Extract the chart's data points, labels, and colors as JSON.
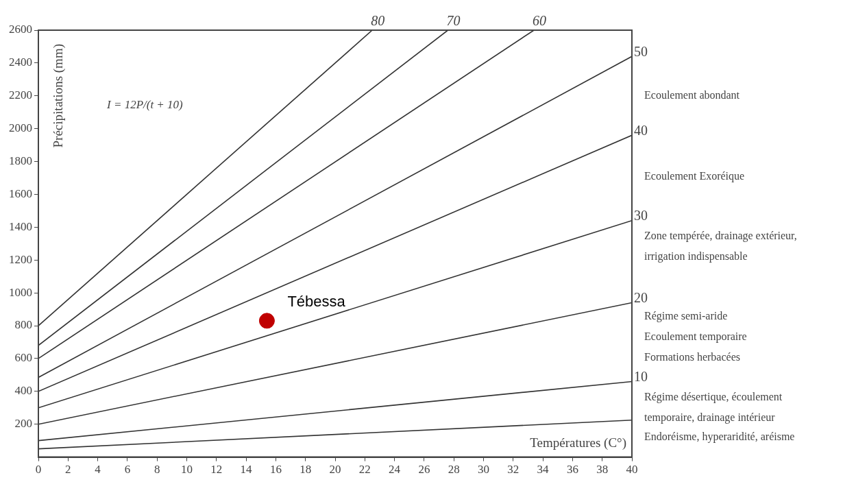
{
  "chart_data": {
    "type": "line",
    "xlabel": "Températures (C°)",
    "ylabel": "Précipitations (mm)",
    "xlim": [
      0,
      40
    ],
    "xticks": [
      0,
      2,
      4,
      6,
      8,
      10,
      12,
      14,
      16,
      18,
      20,
      22,
      24,
      26,
      28,
      30,
      32,
      34,
      36,
      38,
      40
    ],
    "ylim": [
      0,
      2600
    ],
    "yticks": [
      200,
      400,
      600,
      800,
      1000,
      1200,
      1400,
      1600,
      1800,
      2000,
      2200,
      2400,
      2600
    ],
    "grid": false,
    "legend": false,
    "marker": "none",
    "line_style": "solid",
    "series": [
      {
        "name": "80",
        "color": "#333333",
        "x": [
          0,
          22.5
        ],
        "values": [
          800,
          2600
        ]
      },
      {
        "name": "70",
        "color": "#333333",
        "x": [
          0,
          27.6
        ],
        "values": [
          680,
          2600
        ]
      },
      {
        "name": "60",
        "color": "#333333",
        "x": [
          0,
          33.4
        ],
        "values": [
          600,
          2600
        ]
      },
      {
        "name": "50",
        "color": "#333333",
        "x": [
          0,
          40
        ],
        "values": [
          485,
          2440
        ]
      },
      {
        "name": "40",
        "color": "#333333",
        "x": [
          0,
          40
        ],
        "values": [
          400,
          1960
        ]
      },
      {
        "name": "30",
        "color": "#333333",
        "x": [
          0,
          40
        ],
        "values": [
          300,
          1440
        ]
      },
      {
        "name": "20",
        "color": "#333333",
        "x": [
          0,
          40
        ],
        "values": [
          200,
          940
        ]
      },
      {
        "name": "10",
        "color": "#333333",
        "x": [
          0,
          40
        ],
        "values": [
          100,
          460
        ]
      },
      {
        "color": "#333333",
        "x": [
          0,
          40
        ],
        "values": [
          50,
          225
        ]
      },
      {
        "name": "Tébessa",
        "type": "scatter",
        "marker": "circle",
        "color": "#c00000",
        "x": [
          15.4
        ],
        "values": [
          830
        ]
      }
    ],
    "annotations": [
      "I = 12P/(t + 10)",
      "Ecoulement abondant",
      "Ecoulement Exoréique",
      "Zone tempérée, drainage extérieur,\nirrigation indispensable",
      "Régime semi-aride\nEcoulement temporaire\nFormations herbacées",
      "Régime désertique, écoulement\ntemporaire, drainage intérieur",
      "Endoréisme, hyperaridité, aréisme"
    ]
  }
}
